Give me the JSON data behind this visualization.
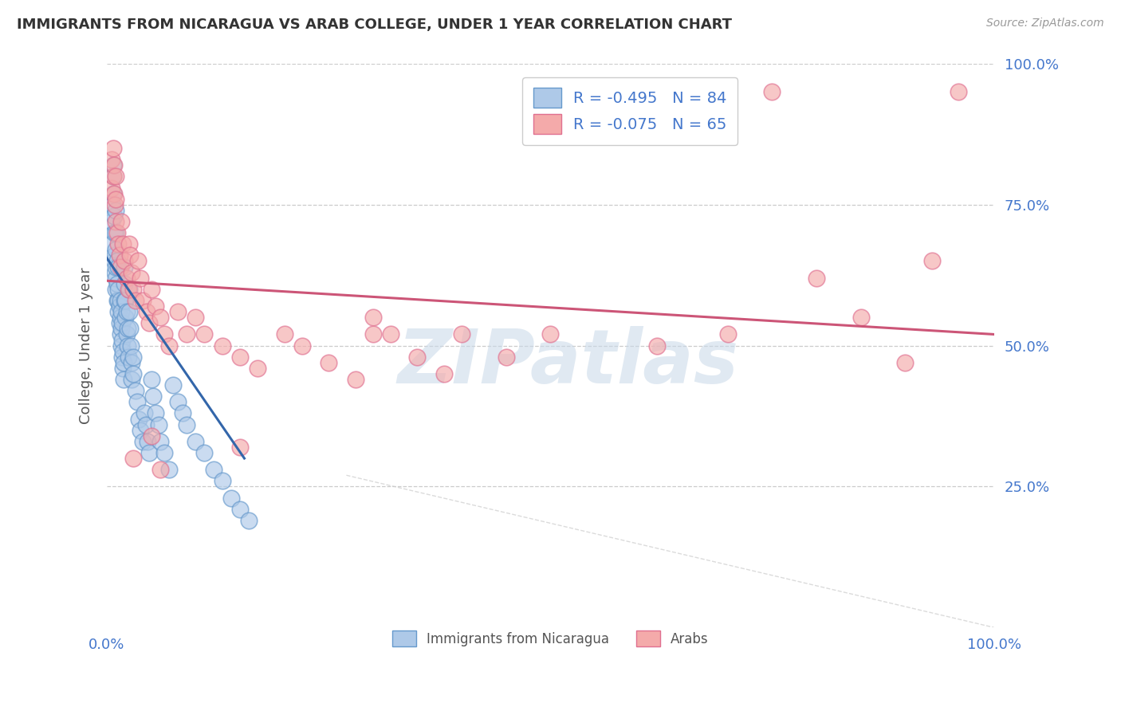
{
  "title": "IMMIGRANTS FROM NICARAGUA VS ARAB COLLEGE, UNDER 1 YEAR CORRELATION CHART",
  "source": "Source: ZipAtlas.com",
  "ylabel": "College, Under 1 year",
  "legend_entry1": "R = -0.495   N = 84",
  "legend_entry2": "R = -0.075   N = 65",
  "legend_label1": "Immigrants from Nicaragua",
  "legend_label2": "Arabs",
  "blue_face_color": "#aec9e8",
  "blue_edge_color": "#6699cc",
  "pink_face_color": "#f4aaaa",
  "pink_edge_color": "#e07090",
  "blue_line_color": "#3366aa",
  "pink_line_color": "#cc5577",
  "watermark_color": "#c8d8e8",
  "grid_color": "#cccccc",
  "title_color": "#333333",
  "tick_color": "#4477cc",
  "ylabel_color": "#555555",
  "source_color": "#999999",
  "blue_scatter_x": [
    0.005,
    0.005,
    0.006,
    0.007,
    0.007,
    0.007,
    0.008,
    0.008,
    0.008,
    0.009,
    0.009,
    0.01,
    0.01,
    0.01,
    0.01,
    0.01,
    0.01,
    0.012,
    0.012,
    0.012,
    0.013,
    0.013,
    0.013,
    0.013,
    0.014,
    0.014,
    0.015,
    0.015,
    0.015,
    0.016,
    0.016,
    0.016,
    0.017,
    0.017,
    0.017,
    0.018,
    0.018,
    0.019,
    0.019,
    0.02,
    0.02,
    0.02,
    0.021,
    0.021,
    0.022,
    0.022,
    0.023,
    0.023,
    0.024,
    0.025,
    0.025,
    0.026,
    0.027,
    0.028,
    0.028,
    0.03,
    0.03,
    0.032,
    0.034,
    0.036,
    0.038,
    0.04,
    0.042,
    0.044,
    0.046,
    0.048,
    0.05,
    0.052,
    0.055,
    0.058,
    0.06,
    0.065,
    0.07,
    0.075,
    0.08,
    0.085,
    0.09,
    0.1,
    0.11,
    0.12,
    0.13,
    0.14,
    0.15,
    0.16
  ],
  "blue_scatter_y": [
    0.68,
    0.72,
    0.75,
    0.77,
    0.8,
    0.82,
    0.65,
    0.7,
    0.73,
    0.63,
    0.66,
    0.6,
    0.62,
    0.64,
    0.67,
    0.7,
    0.74,
    0.58,
    0.61,
    0.65,
    0.56,
    0.58,
    0.6,
    0.64,
    0.54,
    0.57,
    0.52,
    0.55,
    0.58,
    0.5,
    0.53,
    0.56,
    0.48,
    0.51,
    0.54,
    0.46,
    0.49,
    0.44,
    0.47,
    0.58,
    0.61,
    0.64,
    0.55,
    0.58,
    0.52,
    0.56,
    0.5,
    0.53,
    0.48,
    0.56,
    0.6,
    0.53,
    0.5,
    0.47,
    0.44,
    0.45,
    0.48,
    0.42,
    0.4,
    0.37,
    0.35,
    0.33,
    0.38,
    0.36,
    0.33,
    0.31,
    0.44,
    0.41,
    0.38,
    0.36,
    0.33,
    0.31,
    0.28,
    0.43,
    0.4,
    0.38,
    0.36,
    0.33,
    0.31,
    0.28,
    0.26,
    0.23,
    0.21,
    0.19
  ],
  "pink_scatter_x": [
    0.005,
    0.005,
    0.007,
    0.007,
    0.008,
    0.008,
    0.009,
    0.01,
    0.01,
    0.01,
    0.012,
    0.013,
    0.014,
    0.015,
    0.016,
    0.018,
    0.02,
    0.022,
    0.024,
    0.025,
    0.026,
    0.028,
    0.03,
    0.032,
    0.035,
    0.038,
    0.04,
    0.045,
    0.048,
    0.05,
    0.055,
    0.06,
    0.065,
    0.07,
    0.08,
    0.09,
    0.1,
    0.11,
    0.13,
    0.15,
    0.17,
    0.2,
    0.22,
    0.25,
    0.28,
    0.3,
    0.32,
    0.35,
    0.38,
    0.4,
    0.45,
    0.05,
    0.3,
    0.5,
    0.62,
    0.7,
    0.75,
    0.8,
    0.85,
    0.9,
    0.93,
    0.96,
    0.03,
    0.06,
    0.15
  ],
  "pink_scatter_y": [
    0.78,
    0.83,
    0.8,
    0.85,
    0.77,
    0.82,
    0.75,
    0.72,
    0.76,
    0.8,
    0.7,
    0.68,
    0.66,
    0.64,
    0.72,
    0.68,
    0.65,
    0.62,
    0.6,
    0.68,
    0.66,
    0.63,
    0.6,
    0.58,
    0.65,
    0.62,
    0.58,
    0.56,
    0.54,
    0.6,
    0.57,
    0.55,
    0.52,
    0.5,
    0.56,
    0.52,
    0.55,
    0.52,
    0.5,
    0.48,
    0.46,
    0.52,
    0.5,
    0.47,
    0.44,
    0.55,
    0.52,
    0.48,
    0.45,
    0.52,
    0.48,
    0.34,
    0.52,
    0.52,
    0.5,
    0.52,
    0.95,
    0.62,
    0.55,
    0.47,
    0.65,
    0.95,
    0.3,
    0.28,
    0.32
  ],
  "blue_line_x": [
    0.0,
    0.155
  ],
  "blue_line_y": [
    0.655,
    0.3
  ],
  "pink_line_x": [
    0.0,
    1.0
  ],
  "pink_line_y": [
    0.615,
    0.52
  ],
  "dashed_line_x": [
    0.27,
    1.0
  ],
  "dashed_line_y": [
    0.27,
    0.0
  ],
  "xlim": [
    0.0,
    1.0
  ],
  "ylim": [
    0.0,
    1.0
  ],
  "background_color": "#ffffff"
}
